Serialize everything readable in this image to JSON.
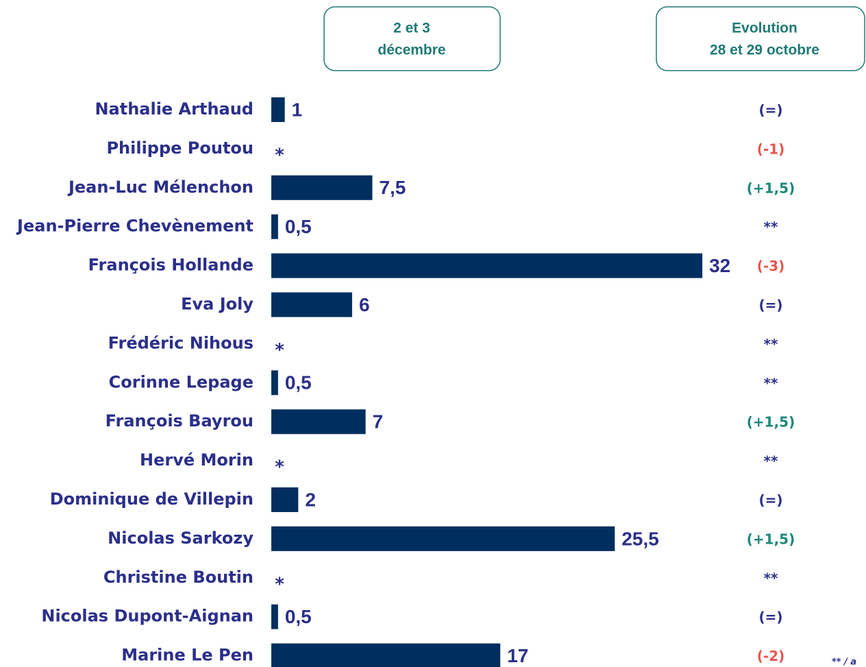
{
  "chart_data": {
    "type": "bar",
    "headers": [
      [
        "2 et 3",
        "décembre"
      ],
      [
        "Evolution",
        "28 et 29 octobre"
      ]
    ],
    "categories": [
      "Nathalie Arthaud",
      "Philippe Poutou",
      "Jean-Luc Mélenchon",
      "Jean-Pierre Chevènement",
      "François Hollande",
      "Eva Joly",
      "Frédéric Nihous",
      "Corinne Lepage",
      "François Bayrou",
      "Hervé Morin",
      "Dominique de Villepin",
      "Nicolas Sarkozy",
      "Christine Boutin",
      "Nicolas Dupont-Aignan",
      "Marine Le Pen"
    ],
    "values": [
      1,
      null,
      7.5,
      0.5,
      32,
      6,
      null,
      0.5,
      7,
      null,
      2,
      25.5,
      null,
      0.5,
      17
    ],
    "value_labels": [
      "1",
      "*",
      "7,5",
      "0,5",
      "32",
      "6",
      "*",
      "0,5",
      "7",
      "*",
      "2",
      "25,5",
      "*",
      "0,5",
      "17"
    ],
    "color": "#002f5f",
    "evolution": [
      "(=)",
      "(-1)",
      "(+1,5)",
      "**",
      "(-3)",
      "(=)",
      "**",
      "**",
      "(+1,5)",
      "**",
      "(=)",
      "(+1,5)",
      "**",
      "(=)",
      "(-2)"
    ],
    "evolution_colors": [
      "#2b2f8a",
      "#e8554c",
      "#1a8878",
      "#2b2f8a",
      "#e8554c",
      "#2b2f8a",
      "#2b2f8a",
      "#2b2f8a",
      "#1a8878",
      "#2b2f8a",
      "#2b2f8a",
      "#1a8878",
      "#2b2f8a",
      "#2b2f8a",
      "#e8554c"
    ],
    "footnote": "** / a"
  }
}
